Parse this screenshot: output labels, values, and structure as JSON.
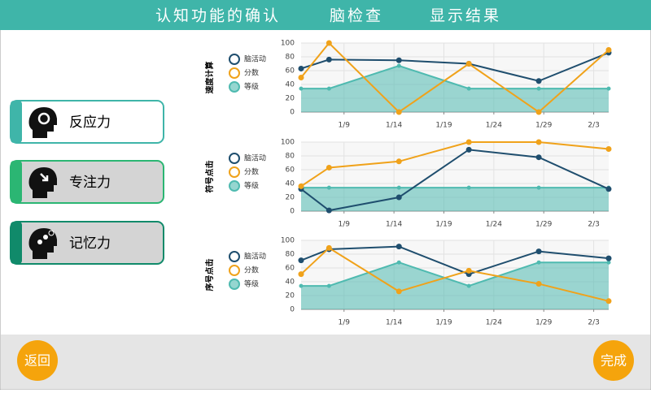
{
  "header": {
    "title": "认知功能的确认",
    "steps": [
      "脑检查",
      "显示结果"
    ]
  },
  "menu": [
    "反应力",
    "专注力",
    "记忆力"
  ],
  "buttons": {
    "back": "返回",
    "done": "完成"
  },
  "chart_data": [
    {
      "type": "line",
      "y_label": "速度计算",
      "x": [
        4.7,
        7.5,
        14.5,
        21.5,
        28.5,
        35.5
      ],
      "xlim": [
        4.7,
        35.5
      ],
      "xticks": [
        {
          "value": 9,
          "label": "1/9"
        },
        {
          "value": 14,
          "label": "1/14"
        },
        {
          "value": 19,
          "label": "1/19"
        },
        {
          "value": 24,
          "label": "1/24"
        },
        {
          "value": 29,
          "label": "1/29"
        },
        {
          "value": 34,
          "label": "2/3"
        }
      ],
      "ylim": [
        0,
        100
      ],
      "yticks": [
        0,
        20,
        40,
        60,
        80,
        100
      ],
      "grid": true,
      "series": [
        {
          "name": "脑活动",
          "color": "#1f4e6e",
          "values": [
            63,
            76,
            75,
            70,
            45,
            86
          ]
        },
        {
          "name": "分数",
          "color": "#f0a21a",
          "values": [
            50,
            100,
            0,
            70,
            0,
            90
          ]
        },
        {
          "name": "等级",
          "color": "#4fbab0",
          "fill": true,
          "values": [
            34,
            34,
            67,
            34,
            34,
            34
          ]
        }
      ]
    },
    {
      "type": "line",
      "y_label": "符号点击",
      "x": [
        4.7,
        7.5,
        14.5,
        21.5,
        28.5,
        35.5
      ],
      "xlim": [
        4.7,
        35.5
      ],
      "xticks": [
        {
          "value": 9,
          "label": "1/9"
        },
        {
          "value": 14,
          "label": "1/14"
        },
        {
          "value": 19,
          "label": "1/19"
        },
        {
          "value": 24,
          "label": "1/24"
        },
        {
          "value": 29,
          "label": "1/29"
        },
        {
          "value": 34,
          "label": "2/3"
        }
      ],
      "ylim": [
        0,
        100
      ],
      "yticks": [
        0,
        20,
        40,
        60,
        80,
        100
      ],
      "grid": true,
      "series": [
        {
          "name": "脑活动",
          "color": "#1f4e6e",
          "values": [
            32,
            1,
            20,
            89,
            78,
            32
          ]
        },
        {
          "name": "分数",
          "color": "#f0a21a",
          "values": [
            36,
            63,
            72,
            100,
            100,
            90
          ]
        },
        {
          "name": "等级",
          "color": "#4fbab0",
          "fill": true,
          "values": [
            34,
            34,
            34,
            34,
            34,
            34
          ]
        }
      ]
    },
    {
      "type": "line",
      "y_label": "序号点击",
      "x": [
        4.7,
        7.5,
        14.5,
        21.5,
        28.5,
        35.5
      ],
      "xlim": [
        4.7,
        35.5
      ],
      "xticks": [
        {
          "value": 9,
          "label": "1/9"
        },
        {
          "value": 14,
          "label": "1/14"
        },
        {
          "value": 19,
          "label": "1/19"
        },
        {
          "value": 24,
          "label": "1/24"
        },
        {
          "value": 29,
          "label": "1/29"
        },
        {
          "value": 34,
          "label": "2/3"
        }
      ],
      "ylim": [
        0,
        100
      ],
      "yticks": [
        0,
        20,
        40,
        60,
        80,
        100
      ],
      "grid": true,
      "series": [
        {
          "name": "脑活动",
          "color": "#1f4e6e",
          "values": [
            71,
            87,
            91,
            51,
            84,
            74
          ]
        },
        {
          "name": "分数",
          "color": "#f0a21a",
          "values": [
            51,
            89,
            26,
            56,
            37,
            12
          ]
        },
        {
          "name": "等级",
          "color": "#4fbab0",
          "fill": true,
          "values": [
            34,
            34,
            68,
            34,
            68,
            68
          ]
        }
      ]
    }
  ]
}
